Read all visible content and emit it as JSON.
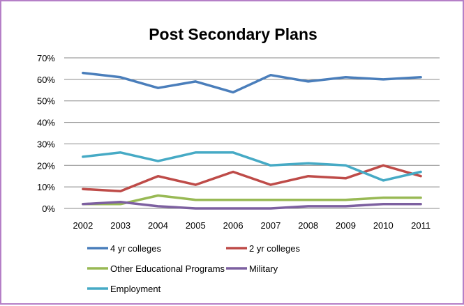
{
  "chart_data": {
    "type": "line",
    "title": "Post Secondary Plans",
    "xlabel": "",
    "ylabel": "",
    "categories": [
      "2002",
      "2003",
      "2004",
      "2005",
      "2006",
      "2007",
      "2008",
      "2009",
      "2010",
      "2011"
    ],
    "y_ticks": [
      "0%",
      "10%",
      "20%",
      "30%",
      "40%",
      "50%",
      "60%",
      "70%"
    ],
    "ylim": [
      0,
      70
    ],
    "grid": "horizontal",
    "legend_position": "bottom",
    "series": [
      {
        "name": "4 yr colleges",
        "color": "#4a7ebb",
        "values": [
          63,
          61,
          56,
          59,
          54,
          62,
          59,
          61,
          60,
          61
        ]
      },
      {
        "name": "2 yr colleges",
        "color": "#be4b48",
        "values": [
          9,
          8,
          15,
          11,
          17,
          11,
          15,
          14,
          20,
          15
        ]
      },
      {
        "name": "Other Educational Programs",
        "color": "#98b954",
        "values": [
          2,
          2,
          6,
          4,
          4,
          4,
          4,
          4,
          5,
          5
        ]
      },
      {
        "name": "Military",
        "color": "#7d60a0",
        "values": [
          2,
          3,
          1,
          0,
          0,
          0,
          1,
          1,
          2,
          2
        ]
      },
      {
        "name": "Employment",
        "color": "#46aac5",
        "values": [
          24,
          26,
          22,
          26,
          26,
          20,
          21,
          20,
          13,
          17
        ]
      }
    ]
  }
}
